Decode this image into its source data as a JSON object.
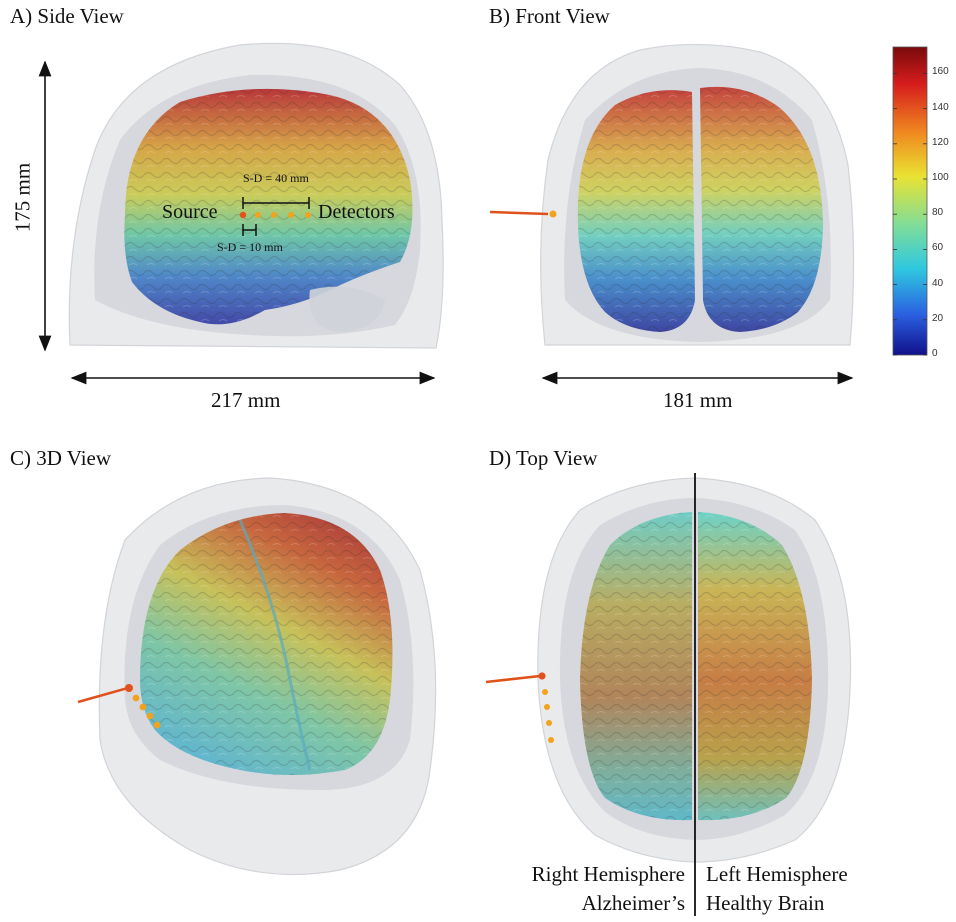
{
  "panels": {
    "a": {
      "title": "A) Side View",
      "height_label": "175 mm",
      "width_label": "217 mm",
      "sd_far": "S-D = 40 mm",
      "sd_near": "S-D = 10 mm",
      "source": "Source",
      "detectors": "Detectors"
    },
    "b": {
      "title": "B) Front View",
      "width_label": "181 mm"
    },
    "c": {
      "title": "C) 3D View"
    },
    "d": {
      "title": "D) Top View",
      "left_line1": "Right Hemisphere",
      "left_line2": "Alzheimer’s",
      "right_line1": "Left Hemisphere",
      "right_line2": "Healthy Brain"
    }
  },
  "colorbar": {
    "ticks": [
      "160",
      "140",
      "120",
      "100",
      "80",
      "60",
      "40",
      "20",
      "0"
    ],
    "tick_values": [
      160,
      140,
      120,
      100,
      80,
      60,
      40,
      20,
      0
    ],
    "min": 0,
    "max": 175,
    "colormap": "jet"
  },
  "colors": {
    "source_marker": "#e0521c",
    "detector_marker": "#f2a21c",
    "head": "#e6e7e9",
    "csf": "#c8cbd0"
  }
}
